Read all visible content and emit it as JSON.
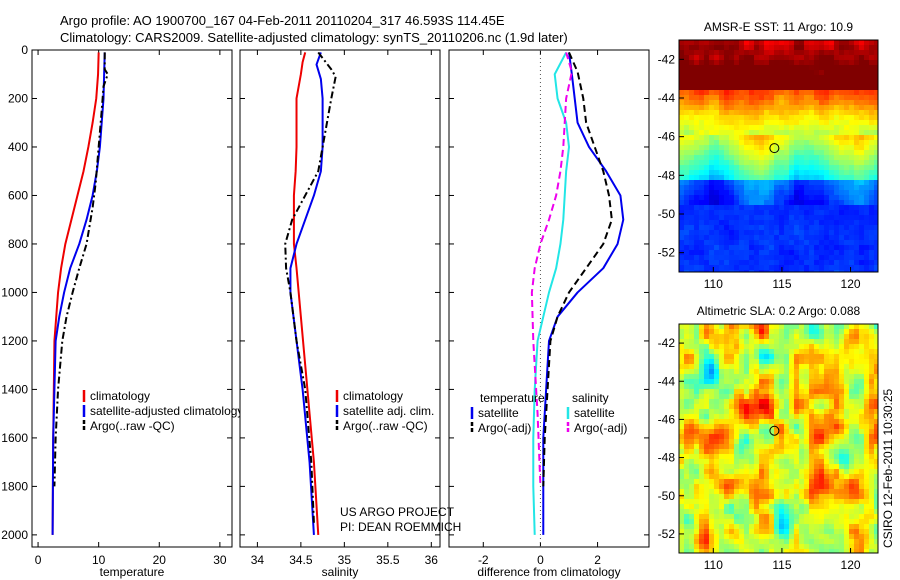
{
  "header": {
    "line1": "Argo profile: AO 1900700_167 04-Feb-2011 20110204_317 46.593S 114.45E",
    "line2": "Climatology: CARS2009. Satellite-adjusted climatology: synTS_20110206.nc (1.9d later)"
  },
  "colors": {
    "climatology": "#ee0000",
    "satellite": "#0000ee",
    "argo": "#000000",
    "sal_satellite": "#22e6e6",
    "sal_argo": "#ee00ee",
    "zero_line": "#555555"
  },
  "credits": {
    "project": "US ARGO PROJECT",
    "pi": "PI: DEAN ROEMMICH",
    "csiro": "CSIRO 12-Feb-2011 10:30:25"
  },
  "chart_data": [
    {
      "type": "line",
      "id": "temperature",
      "xlabel": "temperature",
      "ylabel": "",
      "xlim": [
        -1,
        32
      ],
      "ylim": [
        2050,
        0
      ],
      "xticks": [
        0,
        10,
        20,
        30
      ],
      "yticks": [
        0,
        200,
        400,
        600,
        800,
        1000,
        1200,
        1400,
        1600,
        1800,
        2000
      ],
      "legend": [
        "climatology",
        "satellite-adjusted climatology",
        "Argo(..raw -QC)"
      ],
      "legend_position": "lower-center",
      "series": [
        {
          "name": "climatology",
          "color_key": "climatology",
          "dash": "solid",
          "x": [
            10.0,
            9.9,
            9.6,
            9.0,
            8.3,
            7.5,
            6.5,
            5.5,
            4.5,
            3.8,
            3.3,
            3.0,
            2.7,
            2.6,
            2.5,
            2.4
          ],
          "y": [
            10,
            100,
            200,
            300,
            400,
            500,
            600,
            700,
            800,
            900,
            1000,
            1100,
            1200,
            1400,
            1600,
            2000
          ]
        },
        {
          "name": "satellite-adjusted climatology",
          "color_key": "satellite",
          "dash": "solid",
          "x": [
            11.0,
            10.9,
            10.8,
            10.5,
            10.2,
            9.7,
            9.0,
            8.0,
            6.8,
            5.3,
            4.3,
            3.5,
            2.9,
            2.7,
            2.5,
            2.4
          ],
          "y": [
            10,
            100,
            200,
            300,
            400,
            500,
            600,
            700,
            800,
            900,
            1000,
            1100,
            1200,
            1400,
            1600,
            2000
          ]
        },
        {
          "name": "Argo(..raw -QC)",
          "color_key": "argo",
          "dash": "dashdot",
          "x": [
            11.0,
            11.0,
            11.5,
            10.8,
            10.5,
            10.0,
            9.5,
            9.0,
            8.0,
            6.8,
            5.7,
            4.7,
            4.0,
            3.3,
            2.9,
            2.7
          ],
          "y": [
            10,
            80,
            100,
            150,
            250,
            400,
            550,
            650,
            800,
            900,
            1000,
            1100,
            1200,
            1400,
            1600,
            1800
          ]
        }
      ]
    },
    {
      "type": "line",
      "id": "salinity",
      "xlabel": "salinity",
      "ylabel": "",
      "xlim": [
        33.8,
        36.1
      ],
      "ylim": [
        2050,
        0
      ],
      "xticks": [
        34,
        34.5,
        35,
        35.5,
        36
      ],
      "xticklabels": [
        "34",
        "34.5",
        "35",
        "35.5",
        "36"
      ],
      "legend": [
        "climatology",
        "satellite adj. clim.",
        "Argo(..raw -QC)"
      ],
      "legend_position": "lower-center",
      "series": [
        {
          "name": "climatology",
          "color_key": "climatology",
          "dash": "solid",
          "x": [
            34.55,
            34.52,
            34.5,
            34.45,
            34.45,
            34.45,
            34.44,
            34.42,
            34.42,
            34.42,
            34.45,
            34.5,
            34.55,
            34.6,
            34.65,
            34.7
          ],
          "y": [
            10,
            50,
            100,
            200,
            300,
            400,
            500,
            600,
            700,
            800,
            900,
            1100,
            1300,
            1500,
            1700,
            2000
          ]
        },
        {
          "name": "satellite adj. clim.",
          "color_key": "satellite",
          "dash": "solid",
          "x": [
            34.73,
            34.68,
            34.73,
            34.75,
            34.75,
            34.75,
            34.73,
            34.65,
            34.55,
            34.45,
            34.38,
            34.38,
            34.45,
            34.52,
            34.6,
            34.65
          ],
          "y": [
            10,
            60,
            120,
            200,
            300,
            400,
            500,
            600,
            700,
            800,
            900,
            1000,
            1200,
            1400,
            1700,
            2000
          ]
        },
        {
          "name": "Argo(..raw -QC)",
          "color_key": "argo",
          "dash": "dashdot",
          "x": [
            34.7,
            34.85,
            34.9,
            34.85,
            34.8,
            34.75,
            34.7,
            34.55,
            34.4,
            34.32,
            34.33,
            34.38,
            34.45,
            34.55,
            34.62,
            34.65
          ],
          "y": [
            10,
            80,
            110,
            200,
            300,
            400,
            500,
            600,
            700,
            800,
            900,
            1000,
            1200,
            1400,
            1700,
            1950
          ]
        }
      ]
    },
    {
      "type": "line",
      "id": "difference",
      "xlabel": "difference from climatology",
      "ylabel": "",
      "xlim": [
        -3.2,
        3.8
      ],
      "ylim": [
        2050,
        0
      ],
      "xticks": [
        -2,
        0,
        2
      ],
      "zero_line": 0,
      "legend_groups": [
        {
          "title": "temperature",
          "items": [
            "satellite",
            "Argo(-adj)"
          ]
        },
        {
          "title": "salinity",
          "items": [
            "satellite",
            "Argo(-adj)"
          ]
        }
      ],
      "legend_position": "lower-center",
      "series": [
        {
          "name": "temperature satellite",
          "color_key": "satellite",
          "dash": "solid",
          "x": [
            1.0,
            1.1,
            1.2,
            1.3,
            1.7,
            2.3,
            2.8,
            2.9,
            2.7,
            2.2,
            1.3,
            0.6,
            0.3,
            0.2,
            0.1,
            0.1
          ],
          "y": [
            10,
            100,
            200,
            300,
            400,
            500,
            600,
            700,
            800,
            900,
            1000,
            1100,
            1200,
            1400,
            1600,
            2000
          ]
        },
        {
          "name": "temperature Argo(-adj)",
          "color_key": "argo",
          "dash": "dashed",
          "x": [
            1.0,
            1.3,
            1.5,
            1.6,
            1.9,
            2.2,
            2.4,
            2.5,
            2.2,
            1.6,
            1.0,
            0.6,
            0.35,
            0.25,
            0.15,
            0.1
          ],
          "y": [
            10,
            90,
            200,
            300,
            400,
            500,
            600,
            700,
            800,
            900,
            1000,
            1100,
            1200,
            1400,
            1600,
            1800
          ]
        },
        {
          "name": "salinity satellite",
          "color_key": "sal_satellite",
          "dash": "solid",
          "x": [
            0.9,
            0.5,
            0.6,
            0.9,
            1.0,
            0.9,
            0.85,
            0.8,
            0.7,
            0.55,
            0.3,
            -0.1,
            -0.2,
            -0.25,
            -0.25,
            -0.2
          ],
          "y": [
            10,
            100,
            200,
            300,
            400,
            500,
            600,
            700,
            800,
            900,
            1000,
            1200,
            1400,
            1600,
            1800,
            2000
          ]
        },
        {
          "name": "salinity Argo(-adj)",
          "color_key": "sal_argo",
          "dash": "dashed",
          "x": [
            0.9,
            1.1,
            0.9,
            0.85,
            0.8,
            0.7,
            0.55,
            0.3,
            0.0,
            -0.2,
            -0.3,
            -0.25,
            -0.1,
            0.0
          ],
          "y": [
            10,
            90,
            200,
            300,
            400,
            500,
            600,
            700,
            800,
            900,
            1000,
            1200,
            1500,
            1800
          ]
        }
      ]
    },
    {
      "type": "heatmap",
      "id": "sst",
      "title": "AMSR-E SST: 11 Argo: 10.9",
      "xlim": [
        107.5,
        122
      ],
      "ylim": [
        -53,
        -41
      ],
      "xticks": [
        110,
        115,
        120
      ],
      "yticks": [
        -42,
        -44,
        -46,
        -48,
        -50,
        -52
      ],
      "marker": {
        "x": 114.45,
        "y": -46.593
      },
      "colormap": "jet"
    },
    {
      "type": "heatmap",
      "id": "sla",
      "title": "Altimetric SLA: 0.2 Argo: 0.088",
      "xlim": [
        107.5,
        122
      ],
      "ylim": [
        -53,
        -41
      ],
      "xticks": [
        110,
        115,
        120
      ],
      "yticks": [
        -42,
        -44,
        -46,
        -48,
        -50,
        -52
      ],
      "marker": {
        "x": 114.45,
        "y": -46.593
      },
      "colormap": "jet"
    }
  ]
}
